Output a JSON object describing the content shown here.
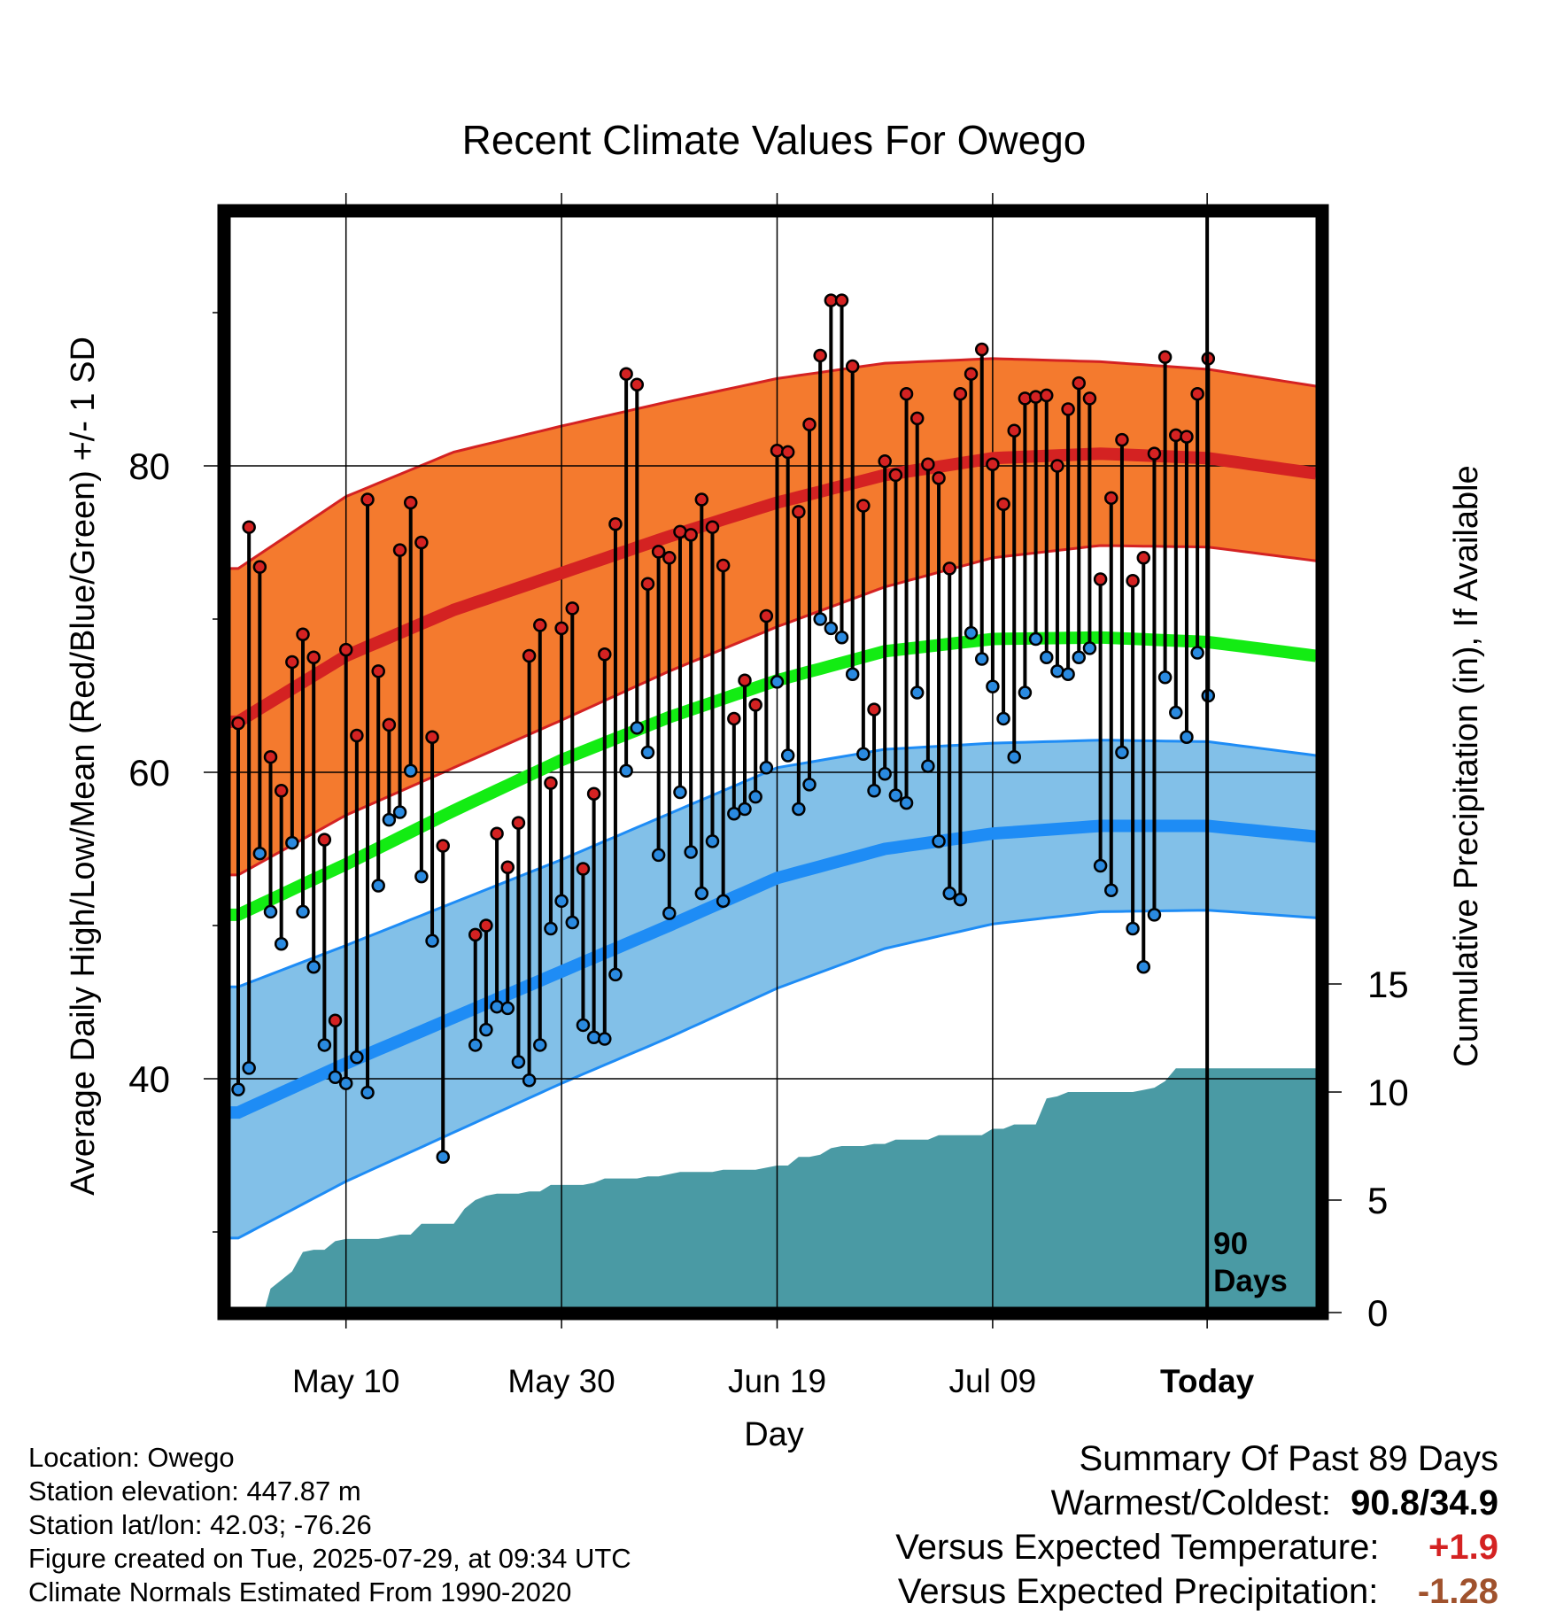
{
  "chart_data": {
    "type": "line",
    "title": "Recent Climate Values For Owego",
    "xlabel": "Day",
    "ylabel": "Average Daily High/Low/Mean (Red/Blue/Green) +/- 1 SD",
    "y2label": "Cumulative Precipitation (in), If Available",
    "xticks": [
      "May 10",
      "May 30",
      "Jun 19",
      "Jul 09",
      "Today"
    ],
    "yticks": [
      "40",
      "60",
      "80"
    ],
    "y2ticks": [
      "0",
      "5",
      "10",
      "15"
    ],
    "ylim": [
      25.3,
      95
    ],
    "y2lim": [
      0,
      50
    ],
    "window_label": [
      "90",
      "Days"
    ],
    "first_day": "Apr 30",
    "day_count": 90,
    "normals": {
      "day": [
        0,
        10,
        20,
        30,
        40,
        50,
        60,
        70,
        80,
        90,
        100
      ],
      "high": [
        63.3,
        67.6,
        70.6,
        73.0,
        75.4,
        77.6,
        79.4,
        80.5,
        80.8,
        80.5,
        79.5
      ],
      "high_sd": [
        10.0,
        10.4,
        10.3,
        9.6,
        8.8,
        8.1,
        7.3,
        6.5,
        6.0,
        5.8,
        5.7
      ],
      "low": [
        37.8,
        41.0,
        44.0,
        47.0,
        50.0,
        53.1,
        55.0,
        56.0,
        56.5,
        56.5,
        55.8
      ],
      "low_sd": [
        8.2,
        7.7,
        7.5,
        7.3,
        7.3,
        7.2,
        6.5,
        5.9,
        5.6,
        5.5,
        5.3
      ],
      "mean": [
        50.7,
        54.0,
        57.5,
        60.8,
        63.6,
        66.0,
        67.9,
        68.7,
        68.8,
        68.5,
        67.6
      ]
    },
    "daily_high": [
      63.2,
      76.0,
      73.4,
      61.0,
      58.8,
      67.2,
      69.0,
      67.5,
      55.6,
      43.8,
      68.0,
      62.4,
      77.8,
      66.6,
      63.1,
      74.5,
      77.6,
      75.0,
      62.3,
      55.2,
      0,
      0,
      49.4,
      50.0,
      56.0,
      53.8,
      56.7,
      67.6,
      69.6,
      59.3,
      69.4,
      70.7,
      53.7,
      58.6,
      67.7,
      76.2,
      86.0,
      85.3,
      72.3,
      74.4,
      74.0,
      75.7,
      75.5,
      77.8,
      76.0,
      73.5,
      63.5,
      66.0,
      64.4,
      70.2,
      81.0,
      80.9,
      77.0,
      82.7,
      87.2,
      90.8,
      90.8,
      86.5,
      77.4,
      64.1,
      80.3,
      79.4,
      84.7,
      83.1,
      80.1,
      79.2,
      73.3,
      84.7,
      86.0,
      87.6,
      80.1,
      77.5,
      82.3,
      84.4,
      84.5,
      84.6,
      80.0,
      83.7,
      85.4,
      84.4,
      72.6,
      77.9,
      81.7,
      72.5,
      74.0,
      80.8,
      87.1,
      82.0,
      81.9,
      84.7,
      87.0
    ],
    "daily_low": [
      39.3,
      40.7,
      54.7,
      50.9,
      48.8,
      55.4,
      50.9,
      47.3,
      42.2,
      40.1,
      39.7,
      41.4,
      39.1,
      52.6,
      56.9,
      57.4,
      60.1,
      53.2,
      49.0,
      34.9,
      0,
      0,
      42.2,
      43.2,
      44.7,
      44.6,
      41.1,
      39.9,
      42.2,
      49.8,
      51.6,
      50.2,
      43.5,
      42.7,
      42.6,
      46.8,
      60.1,
      62.9,
      61.3,
      54.6,
      50.8,
      58.7,
      54.8,
      52.1,
      55.5,
      51.6,
      57.3,
      57.6,
      58.4,
      60.3,
      65.9,
      61.1,
      57.6,
      59.2,
      70.0,
      69.4,
      68.8,
      66.4,
      61.2,
      58.8,
      59.9,
      58.5,
      58.0,
      65.2,
      60.4,
      55.5,
      52.1,
      51.7,
      69.1,
      67.4,
      65.6,
      63.5,
      61.0,
      65.2,
      68.7,
      67.5,
      66.6,
      66.4,
      67.5,
      68.1,
      53.9,
      52.3,
      61.3,
      49.8,
      47.3,
      50.7,
      66.2,
      63.9,
      62.3,
      67.8,
      65.0
    ],
    "cumulative_precip_x": [
      0,
      2.5,
      3,
      4,
      5,
      6,
      7,
      8,
      9,
      10,
      11,
      12,
      13,
      14,
      15,
      16,
      17,
      18,
      19,
      20,
      21,
      22,
      23,
      24,
      25,
      26,
      27,
      28,
      29,
      30,
      31,
      32,
      33,
      34,
      35,
      36,
      37,
      38,
      39,
      40,
      41,
      42,
      43,
      44,
      45,
      46,
      47,
      48,
      49,
      50,
      51,
      52,
      53,
      54,
      55,
      56,
      57,
      58,
      59,
      60,
      61,
      62,
      63,
      64,
      65,
      66,
      67,
      68,
      69,
      70,
      71,
      72,
      73,
      74,
      75,
      76,
      77,
      78,
      79,
      80,
      81,
      82,
      83,
      84,
      85,
      86,
      87,
      88,
      89,
      90,
      99
    ],
    "cumulative_precip": [
      0,
      0,
      0.9,
      1.3,
      1.7,
      2.6,
      2.7,
      2.7,
      3.1,
      3.2,
      3.2,
      3.2,
      3.2,
      3.3,
      3.4,
      3.4,
      3.9,
      3.9,
      3.9,
      3.9,
      4.6,
      5.0,
      5.2,
      5.3,
      5.3,
      5.3,
      5.4,
      5.4,
      5.7,
      5.7,
      5.7,
      5.7,
      5.8,
      6.0,
      6.0,
      6.0,
      6.0,
      6.1,
      6.1,
      6.2,
      6.3,
      6.3,
      6.3,
      6.3,
      6.4,
      6.4,
      6.4,
      6.4,
      6.5,
      6.6,
      6.6,
      7.0,
      7.0,
      7.1,
      7.4,
      7.5,
      7.5,
      7.5,
      7.6,
      7.6,
      7.8,
      7.8,
      7.8,
      7.8,
      8.0,
      8.0,
      8.0,
      8.0,
      8.0,
      8.3,
      8.3,
      8.5,
      8.5,
      8.5,
      9.7,
      9.8,
      10.0,
      10.0,
      10.0,
      10.0,
      10.0,
      10.0,
      10.0,
      10.1,
      10.2,
      10.5,
      11.1,
      11.1,
      11.1,
      11.1,
      11.1
    ],
    "grid": true,
    "legend": "none",
    "colors": {
      "high_band": "#f47a2e",
      "high_line": "#d42222",
      "low_band": "#82c0e8",
      "low_line": "#1e8cf5",
      "mean_line": "#13ec13",
      "precip": "#4a9aa4",
      "high_dot": "#d42222",
      "low_dot": "#2a8ae0"
    }
  },
  "info": {
    "location": "Location: Owego",
    "elevation": "Station elevation: 447.87 m",
    "latlon": "Station lat/lon: 42.03; -76.26",
    "created": "Figure created on Tue, 2025-07-29, at 09:34 UTC",
    "normals": "Climate Normals Estimated From 1990-2020"
  },
  "summary": {
    "heading": "Summary Of Past 89 Days",
    "warmest_label": "Warmest/Coldest:",
    "warmest_value": "90.8/34.9",
    "temp_label": "Versus Expected Temperature:",
    "temp_value": "+1.9",
    "temp_color": "#d42222",
    "precip_label": "Versus Expected Precipitation:",
    "precip_value": "-1.28",
    "precip_color": "#a0522d"
  }
}
